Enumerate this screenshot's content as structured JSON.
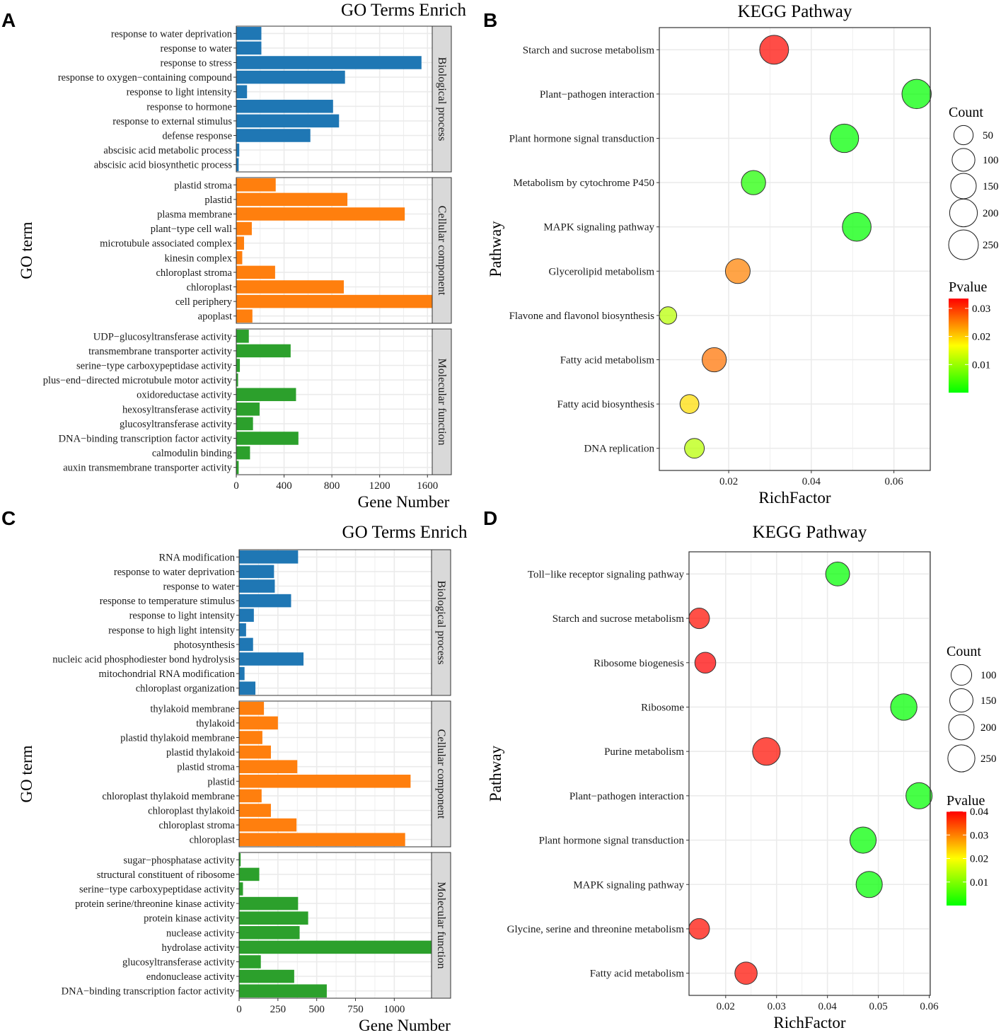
{
  "figure_labels": [
    "A",
    "B",
    "C",
    "D"
  ],
  "colors": {
    "biological_process": "#1f77b4",
    "cellular_component": "#ff7f0e",
    "molecular_function": "#2ca02c",
    "strip_fill": "#d9d9d9",
    "grid": "#ebebeb",
    "pvalue_high": "#ff0000",
    "pvalue_low": "#00ff00"
  },
  "chart_data": [
    {
      "panel": "A",
      "type": "bar",
      "orientation": "horizontal",
      "title": "GO Terms Enrich",
      "xlabel": "Gene Number",
      "ylabel": "GO term",
      "xlim": [
        0,
        1640
      ],
      "xticks": [
        0,
        400,
        800,
        1200,
        1600
      ],
      "xtick_labels": [
        "0",
        "400",
        "800",
        "1200",
        "1600"
      ],
      "facets": [
        {
          "name": "Biological process",
          "color": "#1f77b4",
          "categories": [
            "response to water deprivation",
            "response to water",
            "response to stress",
            "response to oxygen−containing compound",
            "response to light intensity",
            "response to hormone",
            "response to external stimulus",
            "defense response",
            "abscisic acid metabolic process",
            "abscisic acid biosynthetic process"
          ],
          "values": [
            210,
            210,
            1550,
            910,
            90,
            810,
            860,
            620,
            25,
            20
          ]
        },
        {
          "name": "Cellular component",
          "color": "#ff7f0e",
          "categories": [
            "plastid stroma",
            "plastid",
            "plasma membrane",
            "plant−type cell wall",
            "microtubule associated complex",
            "kinesin complex",
            "chloroplast stroma",
            "chloroplast",
            "cell periphery",
            "apoplast"
          ],
          "values": [
            330,
            930,
            1410,
            130,
            65,
            50,
            325,
            900,
            1640,
            135
          ]
        },
        {
          "name": "Molecular function",
          "color": "#2ca02c",
          "categories": [
            "UDP−glucosyltransferase activity",
            "transmembrane transporter activity",
            "serine−type carboxypeptidase activity",
            "plus−end−directed microtubule motor activity",
            "oxidoreductase activity",
            "hexosyltransferase activity",
            "glucosyltransferase activity",
            "DNA−binding transcription factor activity",
            "calmodulin binding",
            "auxin transmembrane transporter activity"
          ],
          "values": [
            105,
            455,
            30,
            15,
            500,
            195,
            140,
            520,
            115,
            20
          ]
        }
      ]
    },
    {
      "panel": "B",
      "type": "scatter",
      "title": "KEGG Pathway",
      "xlabel": "RichFactor",
      "ylabel": "Pathway",
      "xlim": [
        0.0032,
        0.0688
      ],
      "xticks": [
        0.02,
        0.04,
        0.06
      ],
      "xtick_labels": [
        "0.02",
        "0.04",
        "0.06"
      ],
      "categories": [
        "Starch and sucrose metabolism",
        "Plant−pathogen interaction",
        "Plant hormone signal transduction",
        "Metabolism by cytochrome P450",
        "MAPK signaling pathway",
        "Glycerolipid metabolism",
        "Flavone and flavonol biosynthesis",
        "Fatty acid metabolism",
        "Fatty acid biosynthesis",
        "DNA replication"
      ],
      "x": [
        0.031,
        0.0655,
        0.048,
        0.026,
        0.051,
        0.0222,
        0.0053,
        0.0165,
        0.0105,
        0.0117
      ],
      "count": [
        230,
        240,
        220,
        125,
        225,
        135,
        30,
        125,
        45,
        55
      ],
      "pvalue": [
        0.033,
        0.0,
        0.0,
        0.002,
        0.0,
        0.025,
        0.012,
        0.026,
        0.019,
        0.012
      ],
      "legend": {
        "size_title": "Count",
        "size_values": [
          50,
          100,
          150,
          200,
          250
        ],
        "size_labels": [
          "50",
          "100",
          "150",
          "200",
          "250"
        ],
        "size_range": [
          3,
          290
        ],
        "color_title": "Pvalue",
        "color_ticks": [
          0.01,
          0.02,
          0.03
        ],
        "color_tick_labels": [
          "0.01",
          "0.02",
          "0.03"
        ],
        "color_range": [
          0.0,
          0.0335
        ]
      }
    },
    {
      "panel": "C",
      "type": "bar",
      "orientation": "horizontal",
      "title": "GO Terms Enrich",
      "xlabel": "Gene Number",
      "ylabel": "GO term",
      "xlim": [
        0,
        1240
      ],
      "xticks": [
        0,
        250,
        500,
        750,
        1000
      ],
      "xtick_labels": [
        "0",
        "250",
        "500",
        "750",
        "1000"
      ],
      "facets": [
        {
          "name": "Biological process",
          "color": "#1f77b4",
          "categories": [
            "RNA modification",
            "response to water deprivation",
            "response to water",
            "response to temperature stimulus",
            "response to light intensity",
            "response to high light intensity",
            "photosynthesis",
            "nucleic acid phosphodiester bond hydrolysis",
            "mitochondrial RNA modification",
            "chloroplast organization"
          ],
          "values": [
            380,
            225,
            230,
            335,
            95,
            45,
            90,
            415,
            35,
            105
          ]
        },
        {
          "name": "Cellular component",
          "color": "#ff7f0e",
          "categories": [
            "thylakoid membrane",
            "thylakoid",
            "plastid thylakoid membrane",
            "plastid thylakoid",
            "plastid stroma",
            "plastid",
            "chloroplast thylakoid membrane",
            "chloroplast thylakoid",
            "chloroplast stroma",
            "chloroplast"
          ],
          "values": [
            160,
            250,
            150,
            205,
            375,
            1105,
            145,
            205,
            370,
            1070
          ]
        },
        {
          "name": "Molecular function",
          "color": "#2ca02c",
          "categories": [
            "sugar−phosphatase activity",
            "structural constituent of ribosome",
            "serine−type carboxypeptidase activity",
            "protein serine/threonine kinase activity",
            "protein kinase activity",
            "nuclease activity",
            "hydrolase activity",
            "glucosyltransferase activity",
            "endonuclease activity",
            "DNA−binding transcription factor activity"
          ],
          "values": [
            10,
            130,
            25,
            380,
            445,
            390,
            1240,
            140,
            355,
            565
          ]
        }
      ]
    },
    {
      "panel": "D",
      "type": "scatter",
      "title": "KEGG Pathway",
      "xlabel": "RichFactor",
      "ylabel": "Pathway",
      "xlim": [
        0.0128,
        0.0602
      ],
      "xticks": [
        0.02,
        0.03,
        0.04,
        0.05,
        0.06
      ],
      "xtick_labels": [
        "0.02",
        "0.03",
        "0.04",
        "0.05",
        "0.06"
      ],
      "categories": [
        "Toll−like receptor signaling pathway",
        "Starch and sucrose metabolism",
        "Ribosome biogenesis",
        "Ribosome",
        "Purine metabolism",
        "Plant−pathogen interaction",
        "Plant hormone signal transduction",
        "MAPK signaling pathway",
        "Glycine, serine and threonine metabolism",
        "Fatty acid metabolism"
      ],
      "x": [
        0.042,
        0.0148,
        0.016,
        0.055,
        0.028,
        0.058,
        0.047,
        0.0482,
        0.0148,
        0.024
      ],
      "count": [
        165,
        100,
        105,
        230,
        270,
        225,
        225,
        225,
        100,
        130
      ],
      "pvalue": [
        0.0,
        0.039,
        0.04,
        0.0,
        0.039,
        0.0,
        0.0,
        0.0,
        0.039,
        0.039
      ],
      "legend": {
        "size_title": "Count",
        "size_values": [
          100,
          150,
          200,
          250
        ],
        "size_labels": [
          "100",
          "150",
          "200",
          "250"
        ],
        "size_range": [
          50,
          290
        ],
        "color_title": "Pvalue",
        "color_ticks": [
          0.01,
          0.02,
          0.03,
          0.04
        ],
        "color_tick_labels": [
          "0.01",
          "0.02",
          "0.03",
          "0.04"
        ],
        "color_range": [
          0.0,
          0.04
        ]
      }
    }
  ]
}
